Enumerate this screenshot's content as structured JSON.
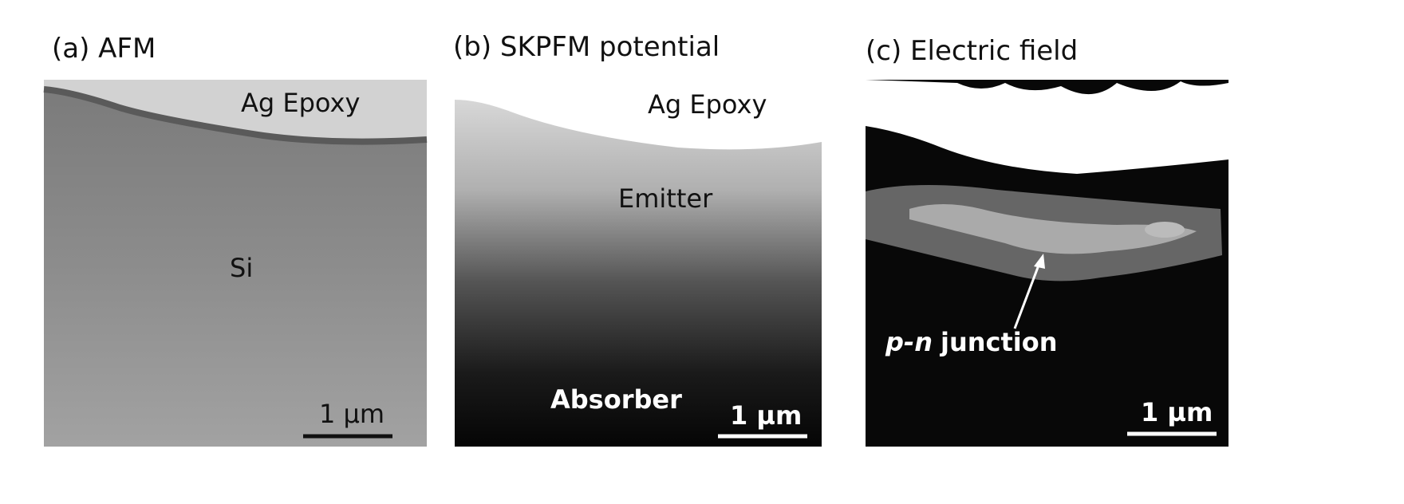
{
  "panels": [
    {
      "title": "(a) AFM",
      "labels": [
        "Ag Epoxy",
        "Si"
      ],
      "scale_bar": "1 µm"
    },
    {
      "title": "(b) SKPFM potential",
      "labels": [
        "Ag Epoxy",
        "Emitter",
        "Absorber"
      ],
      "scale_bar": "1 µm"
    },
    {
      "title": "(c) Electric field",
      "annotation": {
        "emphasis": "p-n",
        "text": "junction"
      },
      "scale_bar": "1 µm"
    }
  ]
}
